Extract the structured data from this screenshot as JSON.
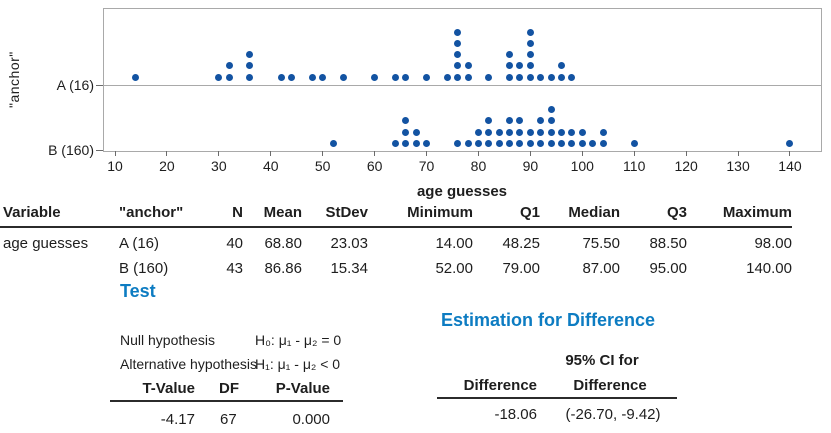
{
  "colors": {
    "accent_blue": "#0d7cc2",
    "dot_blue": "#1353a2",
    "grid_gray": "#a9a9a9"
  },
  "chart_data": {
    "type": "scatter",
    "variant": "stacked-dotplot",
    "xlabel": "age guesses",
    "ylabel": "\"anchor\"",
    "x_ticks": [
      10,
      20,
      30,
      40,
      50,
      60,
      70,
      80,
      90,
      100,
      110,
      120,
      130,
      140
    ],
    "xlim": [
      7.7,
      146
    ],
    "grid": "category-line-per-group",
    "groups": [
      {
        "label": "A (16)",
        "n": 40,
        "stacks": [
          [
            14,
            1
          ],
          [
            30,
            1
          ],
          [
            32,
            2
          ],
          [
            36,
            3
          ],
          [
            42,
            1
          ],
          [
            44,
            1
          ],
          [
            48,
            1
          ],
          [
            50,
            1
          ],
          [
            54,
            1
          ],
          [
            60,
            1
          ],
          [
            64,
            1
          ],
          [
            66,
            1
          ],
          [
            70,
            1
          ],
          [
            74,
            1
          ],
          [
            76,
            5
          ],
          [
            78,
            2
          ],
          [
            82,
            1
          ],
          [
            86,
            3
          ],
          [
            88,
            2
          ],
          [
            90,
            5
          ],
          [
            92,
            1
          ],
          [
            94,
            1
          ],
          [
            96,
            2
          ],
          [
            98,
            1
          ]
        ]
      },
      {
        "label": "B (160)",
        "n": 43,
        "stacks": [
          [
            52,
            1
          ],
          [
            64,
            1
          ],
          [
            66,
            3
          ],
          [
            68,
            2
          ],
          [
            70,
            1
          ],
          [
            76,
            1
          ],
          [
            78,
            1
          ],
          [
            80,
            2
          ],
          [
            82,
            3
          ],
          [
            84,
            2
          ],
          [
            86,
            3
          ],
          [
            88,
            3
          ],
          [
            90,
            2
          ],
          [
            92,
            3
          ],
          [
            94,
            4
          ],
          [
            96,
            2
          ],
          [
            98,
            2
          ],
          [
            100,
            2
          ],
          [
            102,
            1
          ],
          [
            104,
            2
          ],
          [
            110,
            1
          ],
          [
            140,
            1
          ]
        ]
      }
    ]
  },
  "stats_table": {
    "headers": [
      "Variable",
      "\"anchor\"",
      "N",
      "Mean",
      "StDev",
      "Minimum",
      "Q1",
      "Median",
      "Q3",
      "Maximum"
    ],
    "rows": [
      [
        "age guesses",
        "A (16)",
        "40",
        "68.80",
        "23.03",
        "14.00",
        "48.25",
        "75.50",
        "88.50",
        "98.00"
      ],
      [
        "",
        "B (160)",
        "43",
        "86.86",
        "15.34",
        "52.00",
        "79.00",
        "87.00",
        "95.00",
        "140.00"
      ]
    ]
  },
  "test": {
    "title": "Test",
    "null_label": "Null hypothesis",
    "null_formula": "H₀: μ₁ - μ₂ = 0",
    "alt_label": "Alternative hypothesis",
    "alt_formula": "H₁: μ₁ - μ₂ < 0",
    "table_headers": [
      "T-Value",
      "DF",
      "P-Value"
    ],
    "t_value": "-4.17",
    "df": "67",
    "p_value": "0.000"
  },
  "estimation": {
    "title": "Estimation for Difference",
    "ci_header": "95% CI for",
    "col1_header": "Difference",
    "col2_header": "Difference",
    "difference": "-18.06",
    "ci": "(-26.70, -9.42)"
  }
}
